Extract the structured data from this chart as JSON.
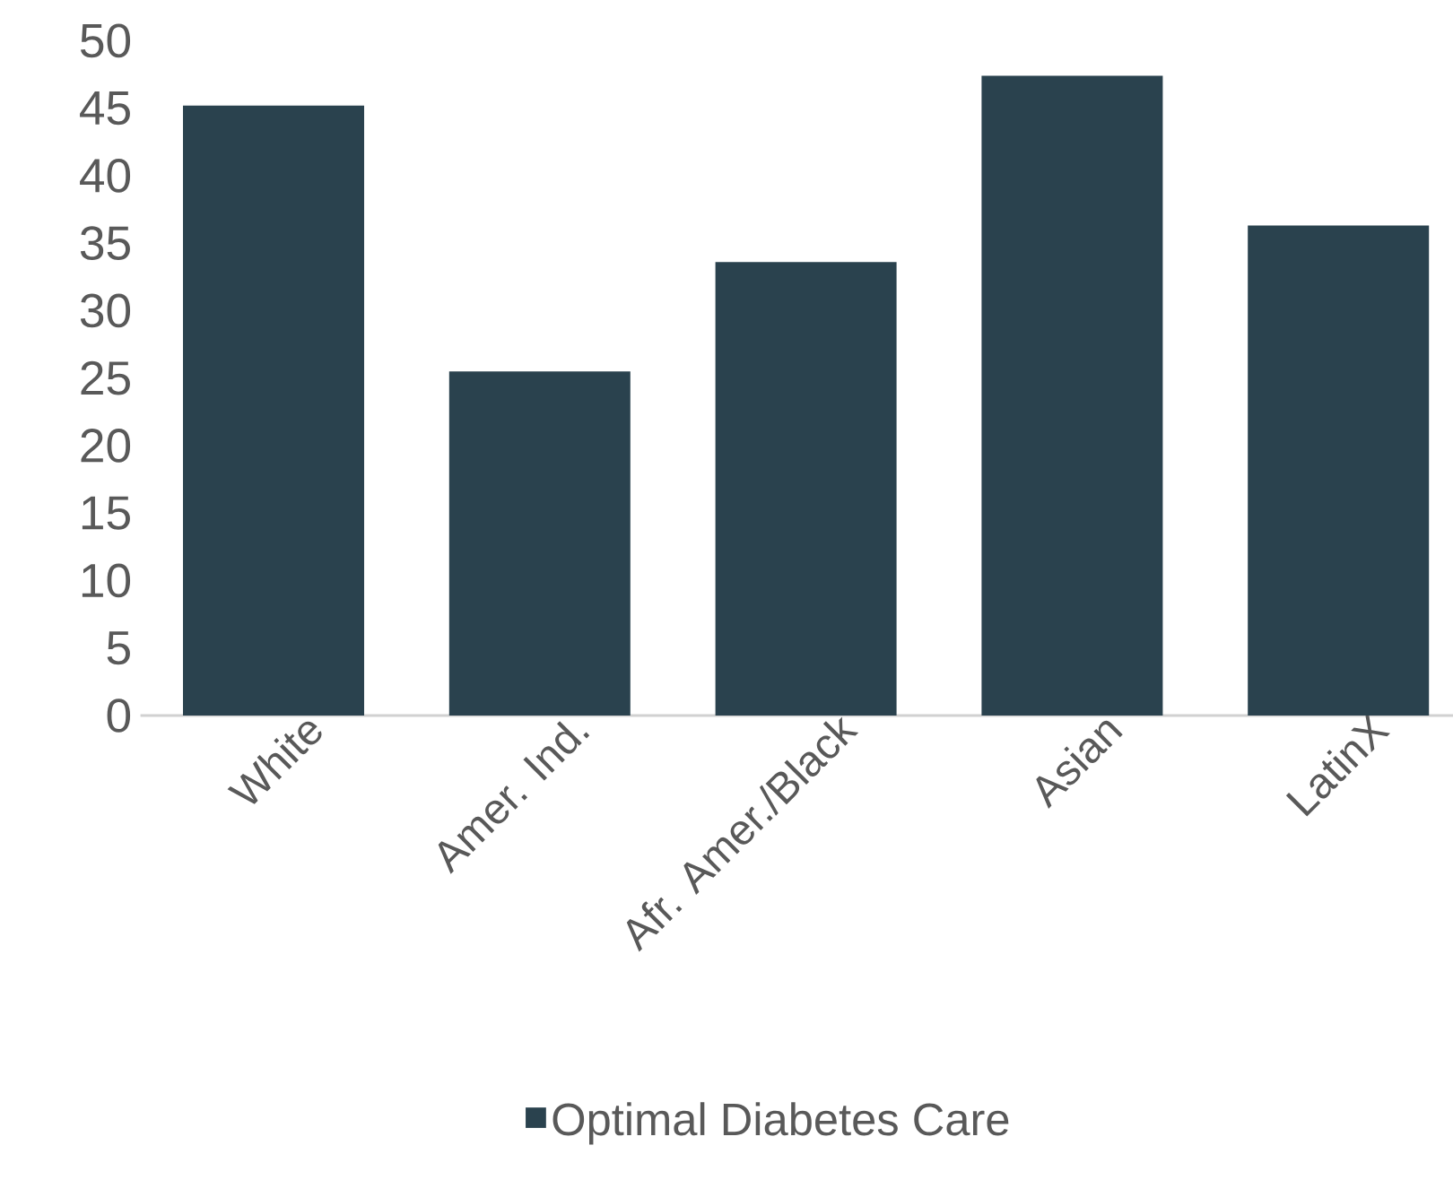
{
  "chart_data": {
    "type": "bar",
    "categories": [
      "White",
      "Amer. Ind.",
      "Afr. Amer./Black",
      "Asian",
      "LatinX"
    ],
    "series": [
      {
        "name": "Optimal Diabetes Care",
        "color": "#2a424e",
        "values": [
          45.2,
          25.5,
          33.6,
          47.4,
          36.3
        ]
      }
    ],
    "ylim": [
      0,
      50
    ],
    "yticks": [
      0,
      5,
      10,
      15,
      20,
      25,
      30,
      35,
      40,
      45,
      50
    ],
    "grid": false,
    "legend": "bottom"
  }
}
